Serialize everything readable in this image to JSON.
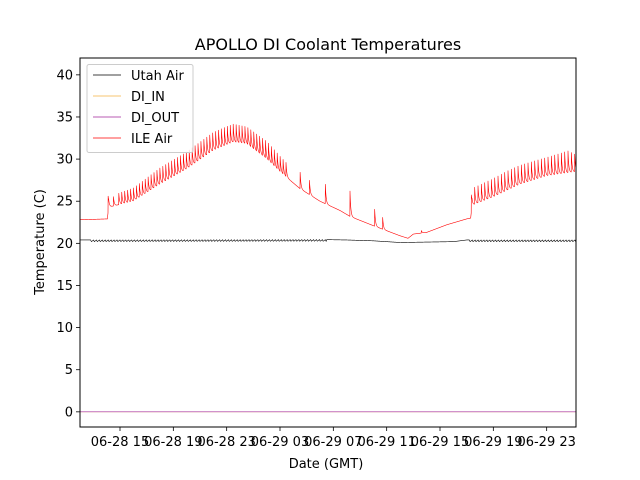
{
  "chart_data": {
    "type": "line",
    "title": "APOLLO DI Coolant Temperatures",
    "xlabel": "Date (GMT)",
    "ylabel": "Temperature (C)",
    "x_units": "hours since 06-28 12:00 GMT",
    "xlim": [
      0,
      37.2
    ],
    "ylim": [
      -1.8,
      42.0
    ],
    "x_ticks": [
      {
        "value": 3,
        "label": "06-28 15"
      },
      {
        "value": 7,
        "label": "06-28 19"
      },
      {
        "value": 11,
        "label": "06-28 23"
      },
      {
        "value": 15,
        "label": "06-29 03"
      },
      {
        "value": 19,
        "label": "06-29 07"
      },
      {
        "value": 23,
        "label": "06-29 11"
      },
      {
        "value": 27,
        "label": "06-29 15"
      },
      {
        "value": 31,
        "label": "06-29 19"
      },
      {
        "value": 35,
        "label": "06-29 23"
      }
    ],
    "y_ticks": [
      {
        "value": 0,
        "label": "0"
      },
      {
        "value": 5,
        "label": "5"
      },
      {
        "value": 10,
        "label": "10"
      },
      {
        "value": 15,
        "label": "15"
      },
      {
        "value": 20,
        "label": "20"
      },
      {
        "value": 25,
        "label": "25"
      },
      {
        "value": 30,
        "label": "30"
      },
      {
        "value": 35,
        "label": "35"
      },
      {
        "value": 40,
        "label": "40"
      }
    ],
    "grid": false,
    "legend_position": "upper-left",
    "series": [
      {
        "name": "Utah Air",
        "color": "#000000",
        "baseline": [
          [
            0,
            20.4
          ],
          [
            18,
            20.45
          ],
          [
            20,
            20.4
          ],
          [
            22,
            20.3
          ],
          [
            24,
            20.1
          ],
          [
            28,
            20.2
          ],
          [
            29,
            20.4
          ],
          [
            37.2,
            20.4
          ]
        ],
        "oscillations": [
          {
            "start": 0.8,
            "end": 18.5,
            "period": 0.22,
            "amp": 0.2
          },
          {
            "start": 29.2,
            "end": 37.2,
            "period": 0.22,
            "amp": 0.2
          }
        ]
      },
      {
        "name": "DI_IN",
        "color": "#f5b342",
        "baseline": [
          [
            0,
            0
          ],
          [
            37.2,
            0
          ]
        ]
      },
      {
        "name": "DI_OUT",
        "color": "#a0259a",
        "baseline": [
          [
            0,
            0
          ],
          [
            37.2,
            0
          ]
        ]
      },
      {
        "name": "ILE Air",
        "color": "#ff0000",
        "baseline": [
          [
            0,
            22.8
          ],
          [
            2.05,
            22.9
          ],
          [
            2.15,
            24.3
          ],
          [
            4,
            25
          ],
          [
            6,
            27
          ],
          [
            8,
            28.8
          ],
          [
            10,
            31
          ],
          [
            11.5,
            32
          ],
          [
            12.5,
            31.8
          ],
          [
            14,
            30
          ],
          [
            15,
            28.5
          ],
          [
            16.5,
            26.5
          ],
          [
            18,
            25
          ],
          [
            19.5,
            23.9
          ],
          [
            20.25,
            23.2
          ],
          [
            22,
            22.1
          ],
          [
            23,
            21.5
          ],
          [
            24,
            20.9
          ],
          [
            24.6,
            20.6
          ],
          [
            25,
            21.1
          ],
          [
            26,
            21.3
          ],
          [
            27.5,
            22.2
          ],
          [
            29,
            22.9
          ],
          [
            29.3,
            23.0
          ],
          [
            29.4,
            24.5
          ],
          [
            31,
            25.5
          ],
          [
            33,
            27
          ],
          [
            35,
            28
          ],
          [
            37.2,
            28.5
          ]
        ],
        "spike_trains": [
          {
            "start": 2.9,
            "end": 15.5,
            "period": 0.22,
            "amp": [
              [
                2.9,
                1.6
              ],
              [
                6,
                2.3
              ],
              [
                9,
                2.5
              ],
              [
                11,
                2.6
              ],
              [
                12.5,
                2.4
              ],
              [
                14,
                2.5
              ],
              [
                15.5,
                2.0
              ]
            ]
          },
          {
            "start": 29.35,
            "end": 37.2,
            "period": 0.25,
            "amp": [
              [
                29.35,
                2.0
              ],
              [
                32,
                2.3
              ],
              [
                35,
                2.2
              ],
              [
                36.6,
                2.6
              ],
              [
                37.2,
                2.0
              ]
            ]
          }
        ],
        "isolated_spikes": [
          [
            2.1,
            2.2
          ],
          [
            2.5,
            1.3
          ],
          [
            16.5,
            2.3
          ],
          [
            17.2,
            2.0
          ],
          [
            18.4,
            2.3
          ],
          [
            20.25,
            3.0
          ],
          [
            22.1,
            2.0
          ],
          [
            22.7,
            1.4
          ],
          [
            25.6,
            0.3
          ]
        ]
      }
    ]
  }
}
